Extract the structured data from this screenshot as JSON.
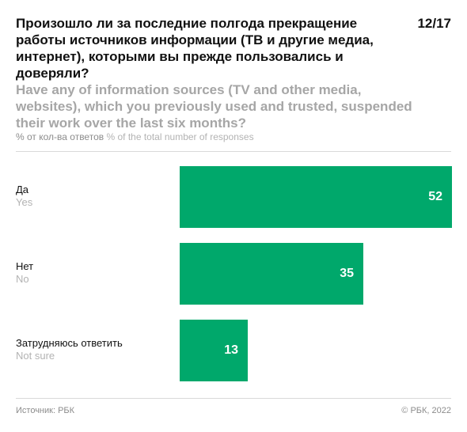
{
  "header": {
    "title_ru": "Произошло ли за последние полгода прекращение работы источников информации (ТВ и другие медиа, интернет), которыми вы прежде пользовались и доверяли?",
    "title_en": "Have any of information sources (TV and other media, websites), which you previously used and trusted, suspended their work over the last six months?",
    "counter": "12/17",
    "units_ru": "% от кол-ва ответов",
    "units_en": "% of the total number of responses"
  },
  "chart_data": {
    "type": "bar",
    "orientation": "horizontal",
    "title": "Произошло ли за последние полгода прекращение работы источников информации (ТВ и другие медиа, интернет), которыми вы прежде пользовались и доверяли?",
    "subtitle": "Have any of information sources (TV and other media, websites), which you previously used and trusted, suspended their work over the last six months?",
    "xlabel": "",
    "ylabel": "",
    "unit": "% от кол-ва ответов / % of the total number of responses",
    "categories": [
      "Да",
      "Нет",
      "Затрудняюсь ответить"
    ],
    "categories_en": [
      "Yes",
      "No",
      "Not sure"
    ],
    "values": [
      52,
      35,
      13
    ],
    "xlim": [
      0,
      52
    ],
    "grid": false,
    "data_labels": true,
    "bar_color": "#00a86b"
  },
  "footer": {
    "source": "Источник: РБК",
    "copyright": "© РБК, 2022"
  },
  "colors": {
    "bar": "#00a86b",
    "title": "#111111",
    "subtitle": "#a6a6a6",
    "muted": "#8c8c8c"
  }
}
